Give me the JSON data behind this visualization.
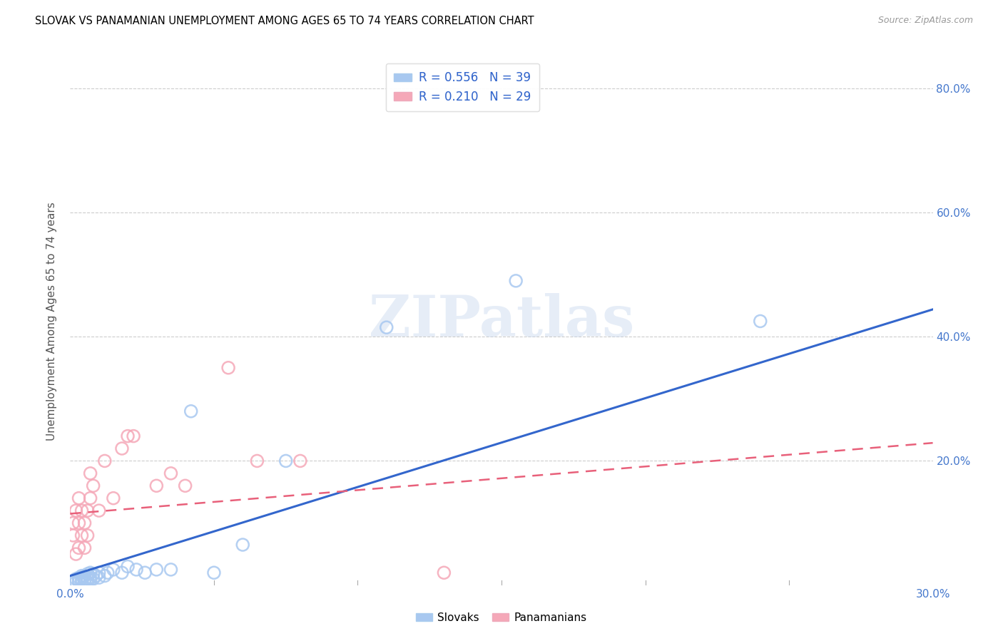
{
  "title": "SLOVAK VS PANAMANIAN UNEMPLOYMENT AMONG AGES 65 TO 74 YEARS CORRELATION CHART",
  "source": "Source: ZipAtlas.com",
  "ylabel": "Unemployment Among Ages 65 to 74 years",
  "xlim": [
    0.0,
    0.3
  ],
  "ylim": [
    0.0,
    0.85
  ],
  "xticks": [
    0.0,
    0.05,
    0.1,
    0.15,
    0.2,
    0.25,
    0.3
  ],
  "yticks": [
    0.0,
    0.2,
    0.4,
    0.6,
    0.8
  ],
  "blue_R": 0.556,
  "blue_N": 39,
  "pink_R": 0.21,
  "pink_N": 29,
  "blue_color": "#A8C8F0",
  "pink_color": "#F5A8B8",
  "blue_edge_color": "#90B8E0",
  "pink_edge_color": "#E898A8",
  "blue_line_color": "#3366CC",
  "pink_line_color": "#E8607A",
  "title_fontsize": 10.5,
  "watermark": "ZIPatlas",
  "blue_scatter_x": [
    0.001,
    0.002,
    0.002,
    0.003,
    0.003,
    0.003,
    0.004,
    0.004,
    0.004,
    0.005,
    0.005,
    0.005,
    0.006,
    0.006,
    0.006,
    0.007,
    0.007,
    0.007,
    0.008,
    0.008,
    0.009,
    0.01,
    0.01,
    0.012,
    0.013,
    0.015,
    0.018,
    0.02,
    0.023,
    0.026,
    0.03,
    0.035,
    0.042,
    0.05,
    0.06,
    0.075,
    0.11,
    0.155,
    0.24
  ],
  "blue_scatter_y": [
    0.005,
    0.005,
    0.01,
    0.005,
    0.008,
    0.012,
    0.005,
    0.01,
    0.015,
    0.005,
    0.008,
    0.015,
    0.005,
    0.01,
    0.018,
    0.008,
    0.012,
    0.02,
    0.01,
    0.018,
    0.015,
    0.012,
    0.02,
    0.015,
    0.02,
    0.025,
    0.02,
    0.03,
    0.025,
    0.02,
    0.025,
    0.025,
    0.28,
    0.02,
    0.065,
    0.2,
    0.415,
    0.49,
    0.425
  ],
  "pink_scatter_x": [
    0.001,
    0.001,
    0.002,
    0.002,
    0.003,
    0.003,
    0.003,
    0.004,
    0.004,
    0.005,
    0.005,
    0.006,
    0.006,
    0.007,
    0.007,
    0.008,
    0.01,
    0.012,
    0.015,
    0.018,
    0.02,
    0.022,
    0.03,
    0.035,
    0.04,
    0.055,
    0.065,
    0.08,
    0.13
  ],
  "pink_scatter_y": [
    0.08,
    0.1,
    0.05,
    0.12,
    0.06,
    0.1,
    0.14,
    0.08,
    0.12,
    0.06,
    0.1,
    0.08,
    0.12,
    0.14,
    0.18,
    0.16,
    0.12,
    0.2,
    0.14,
    0.22,
    0.24,
    0.24,
    0.16,
    0.18,
    0.16,
    0.35,
    0.2,
    0.2,
    0.02
  ]
}
